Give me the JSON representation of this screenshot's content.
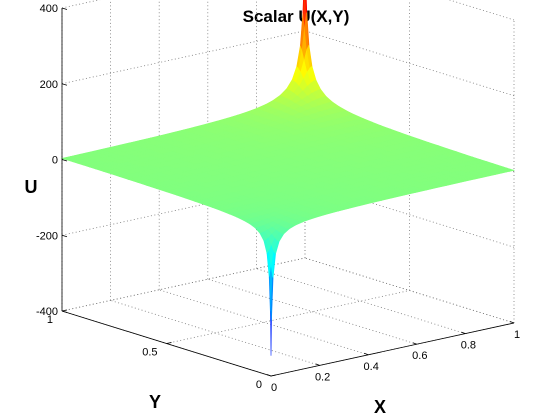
{
  "chart_data": {
    "type": "surface",
    "title": "Scalar U(X,Y)",
    "xlabel": "X",
    "ylabel": "Y",
    "zlabel": "U",
    "xlim": [
      0,
      1
    ],
    "ylim": [
      0,
      1
    ],
    "zlim": [
      -400,
      400
    ],
    "x_ticks": [
      0,
      0.2,
      0.4,
      0.6,
      0.8,
      1
    ],
    "x_tick_labels": [
      "0",
      "0.2",
      "0.4",
      "0.6",
      "0.8",
      "1"
    ],
    "y_ticks": [
      0,
      0.5,
      1
    ],
    "y_tick_labels": [
      "0",
      "0.5",
      "1"
    ],
    "z_ticks": [
      -400,
      -200,
      0,
      200,
      400
    ],
    "z_tick_labels": [
      "-400",
      "-200",
      "0",
      "200",
      "400"
    ],
    "grid": true,
    "colormap": "jet",
    "surface": {
      "baseline_value": 0,
      "features": [
        {
          "kind": "spike",
          "x": 1,
          "y": 1,
          "value": 430
        },
        {
          "kind": "dip",
          "x": 0,
          "y": 0,
          "value": -350
        }
      ]
    }
  }
}
